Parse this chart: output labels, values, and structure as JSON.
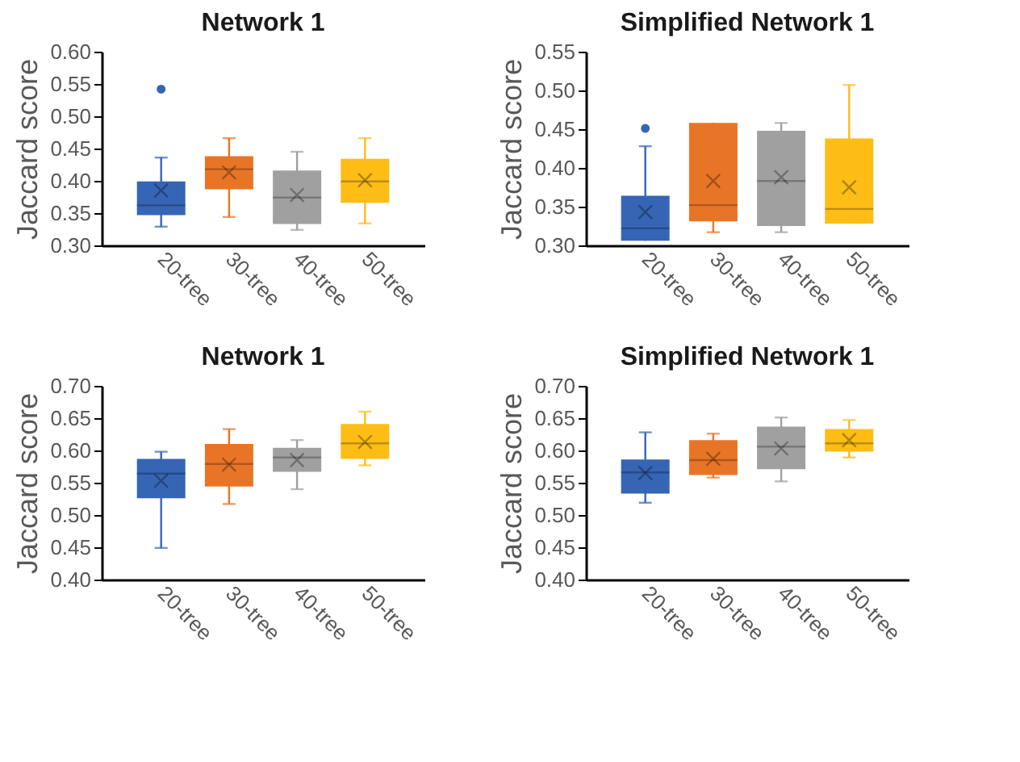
{
  "chart_data": [
    {
      "type": "box",
      "title": "Network 1",
      "ylabel": "Jaccard score",
      "categories": [
        "20-tree",
        "30-tree",
        "40-tree",
        "50-tree"
      ],
      "colors": [
        "#3565b4",
        "#e87526",
        "#a0a0a0",
        "#fdbd15"
      ],
      "boxes": [
        {
          "low": 0.329,
          "q1": 0.347,
          "median": 0.362,
          "q3": 0.399,
          "high": 0.436,
          "mean": 0.385,
          "outliers": [
            0.542
          ]
        },
        {
          "low": 0.344,
          "q1": 0.387,
          "median": 0.418,
          "q3": 0.438,
          "high": 0.466,
          "mean": 0.413
        },
        {
          "low": 0.324,
          "q1": 0.333,
          "median": 0.374,
          "q3": 0.416,
          "high": 0.445,
          "mean": 0.378
        },
        {
          "low": 0.334,
          "q1": 0.366,
          "median": 0.399,
          "q3": 0.434,
          "high": 0.466,
          "mean": 0.401
        }
      ],
      "ylim": [
        0.3,
        0.6
      ],
      "yticks": [
        {
          "value": 0.3,
          "label": "0.30"
        },
        {
          "value": 0.35,
          "label": "0.35"
        },
        {
          "value": 0.4,
          "label": "0.40"
        },
        {
          "value": 0.45,
          "label": "0.45"
        },
        {
          "value": 0.5,
          "label": "0.50"
        },
        {
          "value": 0.55,
          "label": "0.55"
        },
        {
          "value": 0.6,
          "label": "0.60"
        }
      ],
      "grid": false,
      "legend": false
    },
    {
      "type": "box",
      "title": "Simplified Network 1",
      "ylabel": "Jaccard score",
      "categories": [
        "20-tree",
        "30-tree",
        "40-tree",
        "50-tree"
      ],
      "colors": [
        "#3565b4",
        "#e87526",
        "#a0a0a0",
        "#fdbd15"
      ],
      "boxes": [
        {
          "low": 0.306,
          "q1": 0.306,
          "median": 0.322,
          "q3": 0.364,
          "high": 0.428,
          "mean": 0.343,
          "outliers": [
            0.451
          ]
        },
        {
          "low": 0.317,
          "q1": 0.331,
          "median": 0.352,
          "q3": 0.458,
          "high": 0.458,
          "mean": 0.383
        },
        {
          "low": 0.317,
          "q1": 0.325,
          "median": 0.383,
          "q3": 0.448,
          "high": 0.458,
          "mean": 0.388
        },
        {
          "low": 0.328,
          "q1": 0.328,
          "median": 0.347,
          "q3": 0.438,
          "high": 0.507,
          "mean": 0.375
        }
      ],
      "ylim": [
        0.3,
        0.55
      ],
      "yticks": [
        {
          "value": 0.3,
          "label": "0.30"
        },
        {
          "value": 0.35,
          "label": "0.35"
        },
        {
          "value": 0.4,
          "label": "0.40"
        },
        {
          "value": 0.45,
          "label": "0.45"
        },
        {
          "value": 0.5,
          "label": "0.50"
        },
        {
          "value": 0.55,
          "label": "0.55"
        }
      ],
      "grid": false,
      "legend": false
    },
    {
      "type": "box",
      "title": "Network 1",
      "ylabel": "Jaccard score",
      "categories": [
        "20-tree",
        "30-tree",
        "40-tree",
        "50-tree"
      ],
      "colors": [
        "#3565b4",
        "#e87526",
        "#a0a0a0",
        "#fdbd15"
      ],
      "boxes": [
        {
          "low": 0.449,
          "q1": 0.526,
          "median": 0.564,
          "q3": 0.587,
          "high": 0.598,
          "mean": 0.553
        },
        {
          "low": 0.517,
          "q1": 0.544,
          "median": 0.579,
          "q3": 0.61,
          "high": 0.633,
          "mean": 0.578
        },
        {
          "low": 0.54,
          "q1": 0.567,
          "median": 0.589,
          "q3": 0.604,
          "high": 0.616,
          "mean": 0.585
        },
        {
          "low": 0.577,
          "q1": 0.587,
          "median": 0.611,
          "q3": 0.641,
          "high": 0.66,
          "mean": 0.613
        }
      ],
      "ylim": [
        0.4,
        0.7
      ],
      "yticks": [
        {
          "value": 0.4,
          "label": "0.40"
        },
        {
          "value": 0.45,
          "label": "0.45"
        },
        {
          "value": 0.5,
          "label": "0.50"
        },
        {
          "value": 0.55,
          "label": "0.55"
        },
        {
          "value": 0.6,
          "label": "0.60"
        },
        {
          "value": 0.65,
          "label": "0.65"
        },
        {
          "value": 0.7,
          "label": "0.70"
        }
      ],
      "grid": false,
      "legend": false
    },
    {
      "type": "box",
      "title": "Simplified Network 1",
      "ylabel": "Jaccard score",
      "categories": [
        "20-tree",
        "30-tree",
        "40-tree",
        "50-tree"
      ],
      "colors": [
        "#3565b4",
        "#e87526",
        "#a0a0a0",
        "#fdbd15"
      ],
      "boxes": [
        {
          "low": 0.519,
          "q1": 0.533,
          "median": 0.566,
          "q3": 0.586,
          "high": 0.628,
          "mean": 0.565
        },
        {
          "low": 0.558,
          "q1": 0.562,
          "median": 0.585,
          "q3": 0.616,
          "high": 0.626,
          "mean": 0.587
        },
        {
          "low": 0.552,
          "q1": 0.571,
          "median": 0.606,
          "q3": 0.637,
          "high": 0.651,
          "mean": 0.603
        },
        {
          "low": 0.589,
          "q1": 0.598,
          "median": 0.611,
          "q3": 0.633,
          "high": 0.647,
          "mean": 0.616
        }
      ],
      "ylim": [
        0.4,
        0.7
      ],
      "yticks": [
        {
          "value": 0.4,
          "label": "0.40"
        },
        {
          "value": 0.45,
          "label": "0.45"
        },
        {
          "value": 0.5,
          "label": "0.50"
        },
        {
          "value": 0.55,
          "label": "0.55"
        },
        {
          "value": 0.6,
          "label": "0.60"
        },
        {
          "value": 0.65,
          "label": "0.65"
        },
        {
          "value": 0.7,
          "label": "0.70"
        }
      ],
      "grid": false,
      "legend": false
    }
  ]
}
